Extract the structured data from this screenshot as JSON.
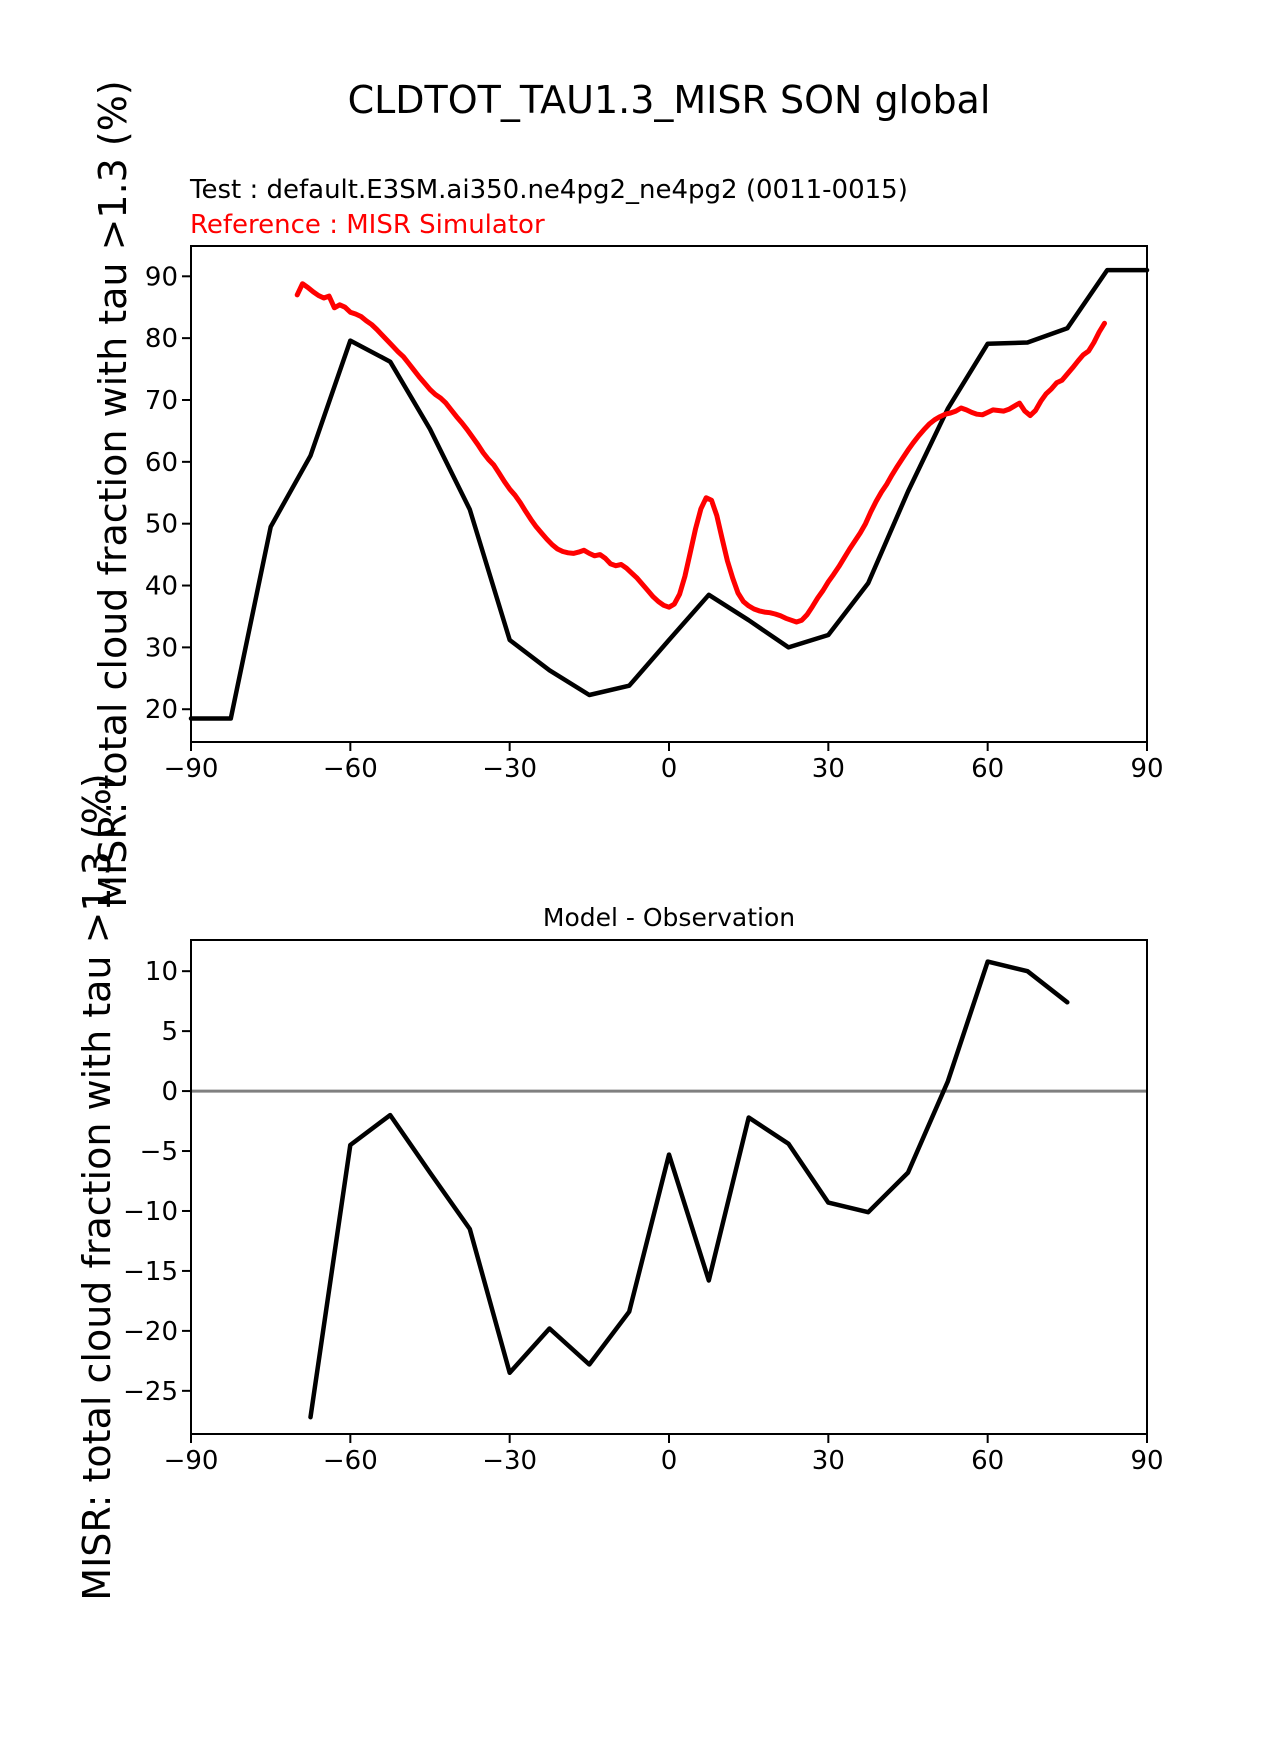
{
  "figure": {
    "title": "CLDTOT_TAU1.3_MISR SON global",
    "subtitle_test": "Test : default.E3SM.ai350.ne4pg2_ne4pg2 (0011-0015)",
    "subtitle_reference": "Reference : MISR Simulator",
    "colors": {
      "test_line": "#000000",
      "reference_line": "#ff0000",
      "difference_line": "#000000",
      "zero_line": "#808080",
      "frame": "#000000"
    }
  },
  "chart_data": [
    {
      "type": "line",
      "title": "",
      "xlabel": "",
      "ylabel": "MISR: total cloud fraction with tau >1.3 (%)",
      "xlim": [
        -90,
        90
      ],
      "ylim": [
        14.7,
        94.9
      ],
      "grid": false,
      "legend_position": "none",
      "x_ticks": [
        -90,
        -60,
        -30,
        0,
        30,
        60,
        90
      ],
      "y_ticks": [
        20,
        30,
        40,
        50,
        60,
        70,
        80,
        90
      ],
      "series": [
        {
          "id": "test-line",
          "name": "Test : default.E3SM.ai350.ne4pg2_ne4pg2 (0011-0015)",
          "color": "#000000",
          "x": [
            -90,
            -82.5,
            -75,
            -67.5,
            -60,
            -52.5,
            -45,
            -37.5,
            -30,
            -22.5,
            -15,
            -7.5,
            0,
            7.5,
            15,
            22.5,
            30,
            37.5,
            45,
            52.5,
            60,
            67.5,
            75,
            82.5,
            90
          ],
          "y": [
            18.5,
            18.5,
            49.5,
            61.0,
            79.6,
            76.2,
            65.3,
            52.3,
            31.2,
            26.3,
            22.3,
            23.8,
            31.2,
            38.5,
            34.4,
            30.0,
            32.0,
            40.4,
            55.2,
            68.6,
            79.1,
            79.3,
            81.6,
            91.0,
            91.0
          ]
        },
        {
          "id": "reference-line",
          "name": "Reference : MISR Simulator",
          "color": "#ff0000",
          "x": [
            -70,
            -69,
            -68,
            -67,
            -66,
            -65,
            -64,
            -63,
            -62,
            -61,
            -60,
            -59,
            -58,
            -57,
            -56,
            -55,
            -54,
            -53,
            -52,
            -51,
            -50,
            -49,
            -48,
            -47,
            -46,
            -45,
            -44,
            -43,
            -42,
            -41,
            -40,
            -39,
            -38,
            -37,
            -36,
            -35,
            -34,
            -33,
            -32,
            -31,
            -30,
            -29,
            -28,
            -27,
            -26,
            -25,
            -24,
            -23,
            -22,
            -21,
            -20,
            -19,
            -18,
            -17,
            -16,
            -15,
            -14,
            -13,
            -12,
            -11,
            -10,
            -9,
            -8,
            -7,
            -6,
            -5,
            -4,
            -3,
            -2,
            -1,
            0,
            1,
            2,
            3,
            4,
            5,
            6,
            7,
            8,
            9,
            10,
            11,
            12,
            13,
            14,
            15,
            16,
            17,
            18,
            19,
            20,
            21,
            22,
            23,
            24,
            25,
            26,
            27,
            28,
            29,
            30,
            31,
            32,
            33,
            34,
            35,
            36,
            37,
            38,
            39,
            40,
            41,
            42,
            43,
            44,
            45,
            46,
            47,
            48,
            49,
            50,
            51,
            52,
            53,
            54,
            55,
            56,
            57,
            58,
            59,
            60,
            61,
            62,
            63,
            64,
            65,
            66,
            67,
            68,
            69,
            70,
            71,
            72,
            73,
            74,
            75,
            76,
            77,
            78,
            79,
            80,
            81,
            82
          ],
          "y": [
            87.0,
            88.8,
            88.2,
            87.5,
            86.9,
            86.5,
            86.8,
            84.9,
            85.4,
            85.0,
            84.2,
            83.9,
            83.5,
            82.8,
            82.2,
            81.4,
            80.5,
            79.6,
            78.7,
            77.8,
            77.0,
            75.9,
            74.8,
            73.7,
            72.7,
            71.7,
            70.9,
            70.3,
            69.5,
            68.4,
            67.3,
            66.3,
            65.2,
            64.0,
            62.8,
            61.5,
            60.4,
            59.5,
            58.2,
            56.8,
            55.6,
            54.6,
            53.4,
            52.0,
            50.7,
            49.5,
            48.5,
            47.5,
            46.6,
            45.9,
            45.5,
            45.3,
            45.2,
            45.4,
            45.7,
            45.2,
            44.8,
            45.0,
            44.4,
            43.5,
            43.2,
            43.4,
            42.8,
            42.0,
            41.2,
            40.2,
            39.2,
            38.2,
            37.4,
            36.8,
            36.5,
            37.0,
            38.6,
            41.5,
            45.3,
            49.2,
            52.4,
            54.2,
            53.8,
            51.3,
            47.6,
            44.0,
            41.2,
            38.8,
            37.4,
            36.7,
            36.2,
            35.9,
            35.7,
            35.6,
            35.4,
            35.1,
            34.7,
            34.4,
            34.1,
            34.4,
            35.3,
            36.6,
            38.0,
            39.2,
            40.6,
            41.8,
            43.1,
            44.5,
            45.9,
            47.2,
            48.5,
            50.0,
            51.9,
            53.6,
            55.1,
            56.4,
            57.9,
            59.3,
            60.6,
            61.9,
            63.1,
            64.2,
            65.2,
            66.1,
            66.8,
            67.3,
            67.7,
            67.9,
            68.2,
            68.7,
            68.4,
            68.0,
            67.7,
            67.6,
            68.0,
            68.4,
            68.3,
            68.2,
            68.5,
            69.0,
            69.5,
            68.2,
            67.5,
            68.3,
            69.8,
            71.0,
            71.8,
            72.8,
            73.2,
            74.2,
            75.2,
            76.3,
            77.3,
            77.9,
            79.3,
            81.0,
            82.4
          ]
        }
      ]
    },
    {
      "type": "line",
      "title": "Model - Observation",
      "xlabel": "",
      "ylabel": "MISR: total cloud fraction with tau >1.3 (%)",
      "xlim": [
        -90,
        90
      ],
      "ylim": [
        -28.6,
        12.6
      ],
      "grid": false,
      "legend_position": "none",
      "zero_line": true,
      "x_ticks": [
        -90,
        -60,
        -30,
        0,
        30,
        60,
        90
      ],
      "y_ticks": [
        10,
        5,
        0,
        -5,
        -10,
        -15,
        -20,
        -25
      ],
      "series": [
        {
          "id": "difference-line",
          "name": "Model - Observation",
          "color": "#000000",
          "x": [
            -67.5,
            -60,
            -52.5,
            -45,
            -37.5,
            -30,
            -22.5,
            -15,
            -7.5,
            0,
            7.5,
            15,
            22.5,
            30,
            37.5,
            45,
            52.5,
            60,
            67.5,
            75
          ],
          "y": [
            -27.2,
            -4.5,
            -2.0,
            -6.8,
            -11.5,
            -23.5,
            -19.8,
            -22.8,
            -18.4,
            -5.3,
            -15.8,
            -2.2,
            -4.4,
            -9.3,
            -10.1,
            -6.8,
            0.8,
            10.8,
            10.0,
            7.4
          ]
        }
      ]
    }
  ]
}
